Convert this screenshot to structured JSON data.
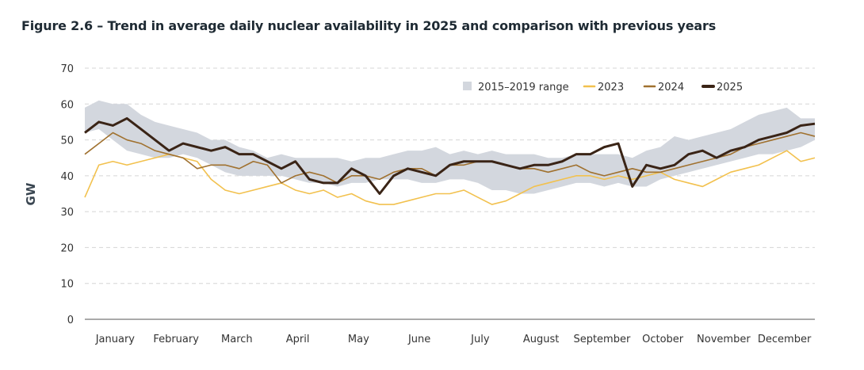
{
  "title": "Figure 2.6 – Trend in average daily nuclear availability in 2025 and comparison with previous years",
  "chart_data": {
    "type": "line",
    "title": "Figure 2.6 – Trend in average daily nuclear availability in 2025 and comparison with previous years",
    "xlabel": "",
    "ylabel": "GW",
    "ylim": [
      0,
      70
    ],
    "yticks": [
      0,
      10,
      20,
      30,
      40,
      50,
      60,
      70
    ],
    "months": [
      "January",
      "February",
      "March",
      "April",
      "May",
      "June",
      "July",
      "August",
      "September",
      "October",
      "November",
      "December"
    ],
    "x_unit": "week of year (approx., 0-52)",
    "grid": true,
    "legend": "top-right",
    "range": {
      "name": "2015–2019 range",
      "color": "#d3d7de",
      "max": [
        59,
        61,
        60,
        60,
        57,
        55,
        54,
        53,
        52,
        50,
        50,
        48,
        47,
        45,
        46,
        45,
        45,
        45,
        45,
        44,
        45,
        45,
        46,
        47,
        47,
        48,
        46,
        47,
        46,
        47,
        46,
        46,
        46,
        45,
        45,
        46,
        46,
        46,
        46,
        45,
        47,
        48,
        51,
        50,
        51,
        52,
        53,
        55,
        57,
        58,
        59,
        56,
        56
      ],
      "min": [
        52,
        53,
        50,
        47,
        46,
        45,
        45,
        46,
        45,
        43,
        41,
        40,
        40,
        40,
        40,
        39,
        38,
        38,
        37,
        38,
        38,
        39,
        39,
        39,
        38,
        38,
        39,
        39,
        38,
        36,
        36,
        35,
        35,
        36,
        37,
        38,
        38,
        37,
        38,
        37,
        37,
        39,
        40,
        41,
        42,
        43,
        44,
        45,
        46,
        46,
        47,
        48,
        50
      ]
    },
    "series": [
      {
        "name": "2023",
        "color": "#f2c14e",
        "width": 1.6,
        "values": [
          34,
          43,
          44,
          43,
          44,
          45,
          46,
          45,
          44,
          39,
          36,
          35,
          36,
          37,
          38,
          36,
          35,
          36,
          34,
          35,
          33,
          32,
          32,
          33,
          34,
          35,
          35,
          36,
          34,
          32,
          33,
          35,
          37,
          38,
          39,
          40,
          40,
          39,
          40,
          39,
          40,
          41,
          39,
          38,
          37,
          39,
          41,
          42,
          43,
          45,
          47,
          44,
          45
        ]
      },
      {
        "name": "2024",
        "color": "#a0712f",
        "width": 1.6,
        "values": [
          46,
          49,
          52,
          50,
          49,
          47,
          46,
          45,
          42,
          43,
          43,
          42,
          44,
          43,
          38,
          40,
          41,
          40,
          38,
          40,
          40,
          39,
          41,
          42,
          42,
          40,
          43,
          43,
          44,
          44,
          43,
          42,
          42,
          41,
          42,
          43,
          41,
          40,
          41,
          42,
          41,
          41,
          42,
          43,
          44,
          45,
          46,
          48,
          49,
          50,
          51,
          52,
          51
        ]
      },
      {
        "name": "2025",
        "color": "#3a2416",
        "width": 3,
        "values": [
          52,
          55,
          54,
          56,
          53,
          50,
          47,
          49,
          48,
          47,
          48,
          46,
          46,
          44,
          42,
          44,
          39,
          38,
          38,
          42,
          40,
          35,
          40,
          42,
          41,
          40,
          43,
          44,
          44,
          44,
          43,
          42,
          43,
          43,
          44,
          46,
          46,
          48,
          49,
          37,
          43,
          42,
          43,
          46,
          47,
          45,
          47,
          48,
          50,
          51,
          52,
          54,
          54.5
        ]
      }
    ]
  }
}
